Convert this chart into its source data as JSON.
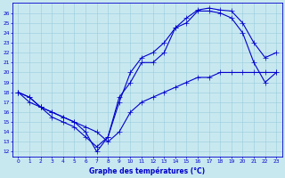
{
  "xlabel": "Graphe des températures (°C)",
  "bg_color": "#c8e8f0",
  "line_color": "#0000cc",
  "grid_color": "#99ccdd",
  "ylim": [
    11.5,
    27.0
  ],
  "xlim": [
    -0.5,
    23.5
  ],
  "yticks": [
    12,
    13,
    14,
    15,
    16,
    17,
    18,
    19,
    20,
    21,
    22,
    23,
    24,
    25,
    26
  ],
  "xticks": [
    0,
    1,
    2,
    3,
    4,
    5,
    6,
    7,
    8,
    9,
    10,
    11,
    12,
    13,
    14,
    15,
    16,
    17,
    18,
    19,
    20,
    21,
    22,
    23
  ],
  "line1_x": [
    0,
    1,
    2,
    3,
    4,
    5,
    6,
    7,
    8,
    9,
    10,
    11,
    12,
    13,
    14,
    15,
    16,
    17,
    18,
    19,
    20,
    21,
    22,
    23
  ],
  "line1_y": [
    18.0,
    17.0,
    16.5,
    15.5,
    15.0,
    14.5,
    13.5,
    12.5,
    13.5,
    17.5,
    19.0,
    21.0,
    21.0,
    22.0,
    24.5,
    25.0,
    26.2,
    26.2,
    26.0,
    25.5,
    24.0,
    21.0,
    19.0,
    20.0
  ],
  "line2_x": [
    0,
    1,
    2,
    3,
    4,
    5,
    6,
    7,
    8,
    9,
    10,
    11,
    12,
    13,
    14,
    15,
    16,
    17,
    18,
    19,
    20,
    21,
    22,
    23
  ],
  "line2_y": [
    18.0,
    17.5,
    16.5,
    16.0,
    15.5,
    15.0,
    14.0,
    12.0,
    13.5,
    17.0,
    20.0,
    21.5,
    22.0,
    23.0,
    24.5,
    25.5,
    26.3,
    26.5,
    26.3,
    26.2,
    25.0,
    23.0,
    21.5,
    22.0
  ],
  "line3_x": [
    0,
    1,
    2,
    3,
    4,
    5,
    6,
    7,
    8,
    9,
    10,
    11,
    12,
    13,
    14,
    15,
    16,
    17,
    18,
    19,
    20,
    21,
    22,
    23
  ],
  "line3_y": [
    18.0,
    17.5,
    16.5,
    16.0,
    15.5,
    15.0,
    14.5,
    14.0,
    13.0,
    14.0,
    16.0,
    17.0,
    17.5,
    18.0,
    18.5,
    19.0,
    19.5,
    19.5,
    20.0,
    20.0,
    20.0,
    20.0,
    20.0,
    20.0
  ]
}
